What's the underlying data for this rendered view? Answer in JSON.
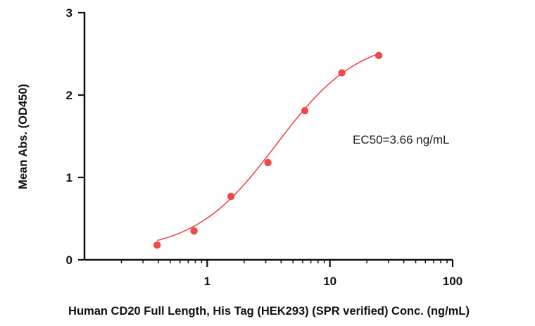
{
  "chart_data": {
    "type": "scatter",
    "title": "",
    "xlabel": "Human CD20 Full Length, His Tag (HEK293) (SPR verified) Conc. (ng/mL)",
    "ylabel": "Mean Abs. (OD450)",
    "x_scale": "log",
    "xlim": [
      0.1,
      100
    ],
    "ylim": [
      0,
      3
    ],
    "x_ticks": [
      {
        "value": 1,
        "label": "1"
      },
      {
        "value": 10,
        "label": "10"
      },
      {
        "value": 100,
        "label": "100"
      }
    ],
    "y_ticks": [
      {
        "value": 0,
        "label": "0"
      },
      {
        "value": 1,
        "label": "1"
      },
      {
        "value": 2,
        "label": "2"
      },
      {
        "value": 3,
        "label": "3"
      }
    ],
    "grid": false,
    "legend": "none",
    "series": [
      {
        "points": [
          {
            "x": 0.391,
            "y": 0.18
          },
          {
            "x": 0.781,
            "y": 0.35
          },
          {
            "x": 1.563,
            "y": 0.77
          },
          {
            "x": 3.125,
            "y": 1.18
          },
          {
            "x": 6.25,
            "y": 1.81
          },
          {
            "x": 12.5,
            "y": 2.27
          },
          {
            "x": 25,
            "y": 2.48
          }
        ],
        "color": "#ee4a4a"
      }
    ],
    "fit": {
      "model": "4PL",
      "bottom": 0.1,
      "top": 2.7,
      "ec50": 3.66,
      "hill": 1.3,
      "color": "#ee4a4a"
    },
    "annotations": [
      {
        "text": "EC50=3.66 ng/mL"
      }
    ]
  }
}
